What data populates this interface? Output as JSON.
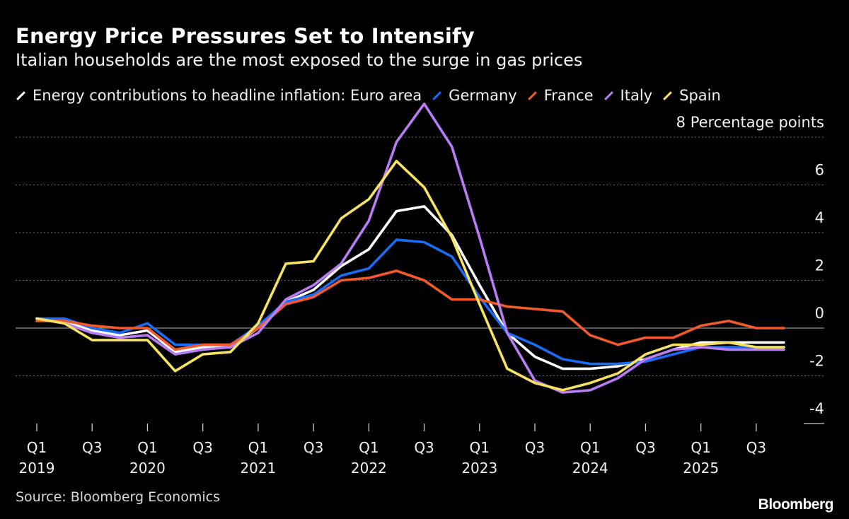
{
  "header": {
    "title": "Energy Price Pressures Set to Intensify",
    "subtitle": "Italian households are the most exposed to the surge in gas prices"
  },
  "footer": {
    "source": "Source: Bloomberg Economics",
    "brand": "Bloomberg"
  },
  "chart_data": {
    "type": "line",
    "title": "Energy Price Pressures Set to Intensify",
    "subtitle": "Italian households are the most exposed to the surge in gas prices",
    "ylabel": "8 Percentage points",
    "xlabel": "",
    "ylim": [
      -4,
      8
    ],
    "yticks": [
      8,
      6,
      4,
      2,
      0,
      -2,
      -4
    ],
    "ytick_labels": [
      "8 Percentage points",
      "6",
      "4",
      "2",
      "0",
      "-2",
      "-4"
    ],
    "grid": true,
    "legend_position": "top-left",
    "x": [
      "Q1 2019",
      "Q2 2019",
      "Q3 2019",
      "Q4 2019",
      "Q1 2020",
      "Q2 2020",
      "Q3 2020",
      "Q4 2020",
      "Q1 2021",
      "Q2 2021",
      "Q3 2021",
      "Q4 2021",
      "Q1 2022",
      "Q2 2022",
      "Q3 2022",
      "Q4 2022",
      "Q1 2023",
      "Q2 2023",
      "Q3 2023",
      "Q4 2023",
      "Q1 2024",
      "Q2 2024",
      "Q3 2024",
      "Q4 2024",
      "Q1 2025",
      "Q2 2025",
      "Q3 2025",
      "Q4 2025"
    ],
    "tick_labels": [
      {
        "q": "Q1",
        "year": "2019"
      },
      {
        "q": "Q3",
        "year": ""
      },
      {
        "q": "Q1",
        "year": "2020"
      },
      {
        "q": "Q3",
        "year": ""
      },
      {
        "q": "Q1",
        "year": "2021"
      },
      {
        "q": "Q3",
        "year": ""
      },
      {
        "q": "Q1",
        "year": "2022"
      },
      {
        "q": "Q3",
        "year": ""
      },
      {
        "q": "Q1",
        "year": "2023"
      },
      {
        "q": "Q3",
        "year": ""
      },
      {
        "q": "Q1",
        "year": "2024"
      },
      {
        "q": "Q3",
        "year": ""
      },
      {
        "q": "Q1",
        "year": "2025"
      },
      {
        "q": "Q3",
        "year": ""
      }
    ],
    "series": [
      {
        "key": "euro",
        "name": "Energy contributions to headline inflation: Euro area",
        "color": "#ffffff",
        "values": [
          0.4,
          0.3,
          -0.1,
          -0.3,
          -0.1,
          -1.0,
          -0.8,
          -0.8,
          0.0,
          1.1,
          1.6,
          2.6,
          3.3,
          4.9,
          5.1,
          3.9,
          1.8,
          -0.2,
          -1.2,
          -1.7,
          -1.7,
          -1.6,
          -1.3,
          -0.9,
          -0.6,
          -0.6,
          -0.6,
          -0.6
        ]
      },
      {
        "key": "germany",
        "name": "Germany",
        "color": "#1a6cf7",
        "values": [
          0.4,
          0.4,
          0.0,
          -0.2,
          0.2,
          -0.7,
          -0.7,
          -0.7,
          0.1,
          1.1,
          1.4,
          2.2,
          2.5,
          3.7,
          3.6,
          3.0,
          1.3,
          -0.2,
          -0.7,
          -1.3,
          -1.5,
          -1.5,
          -1.4,
          -1.1,
          -0.8,
          -0.8,
          -0.8,
          -0.8
        ]
      },
      {
        "key": "france",
        "name": "France",
        "color": "#f25a2c",
        "values": [
          0.3,
          0.3,
          0.1,
          0.0,
          0.0,
          -0.9,
          -0.7,
          -0.7,
          0.0,
          1.0,
          1.3,
          2.0,
          2.1,
          2.4,
          2.0,
          1.2,
          1.2,
          0.9,
          0.8,
          0.7,
          -0.3,
          -0.7,
          -0.4,
          -0.4,
          0.1,
          0.3,
          0.0,
          0.0
        ]
      },
      {
        "key": "italy",
        "name": "Italy",
        "color": "#b97cf5",
        "values": [
          0.4,
          0.2,
          -0.2,
          -0.4,
          -0.3,
          -1.1,
          -0.9,
          -0.8,
          -0.2,
          1.2,
          1.8,
          2.7,
          4.5,
          7.8,
          9.4,
          7.6,
          3.8,
          -0.2,
          -2.2,
          -2.7,
          -2.6,
          -2.1,
          -1.3,
          -0.9,
          -0.8,
          -0.9,
          -0.9,
          -0.9
        ]
      },
      {
        "key": "spain",
        "name": "Spain",
        "color": "#f7e35f",
        "values": [
          0.4,
          0.2,
          -0.5,
          -0.5,
          -0.5,
          -1.8,
          -1.1,
          -1.0,
          0.2,
          2.7,
          2.8,
          4.6,
          5.4,
          7.0,
          5.9,
          3.8,
          1.0,
          -1.7,
          -2.3,
          -2.6,
          -2.3,
          -1.9,
          -1.1,
          -0.7,
          -0.7,
          -0.6,
          -0.8,
          -0.8
        ]
      }
    ]
  }
}
